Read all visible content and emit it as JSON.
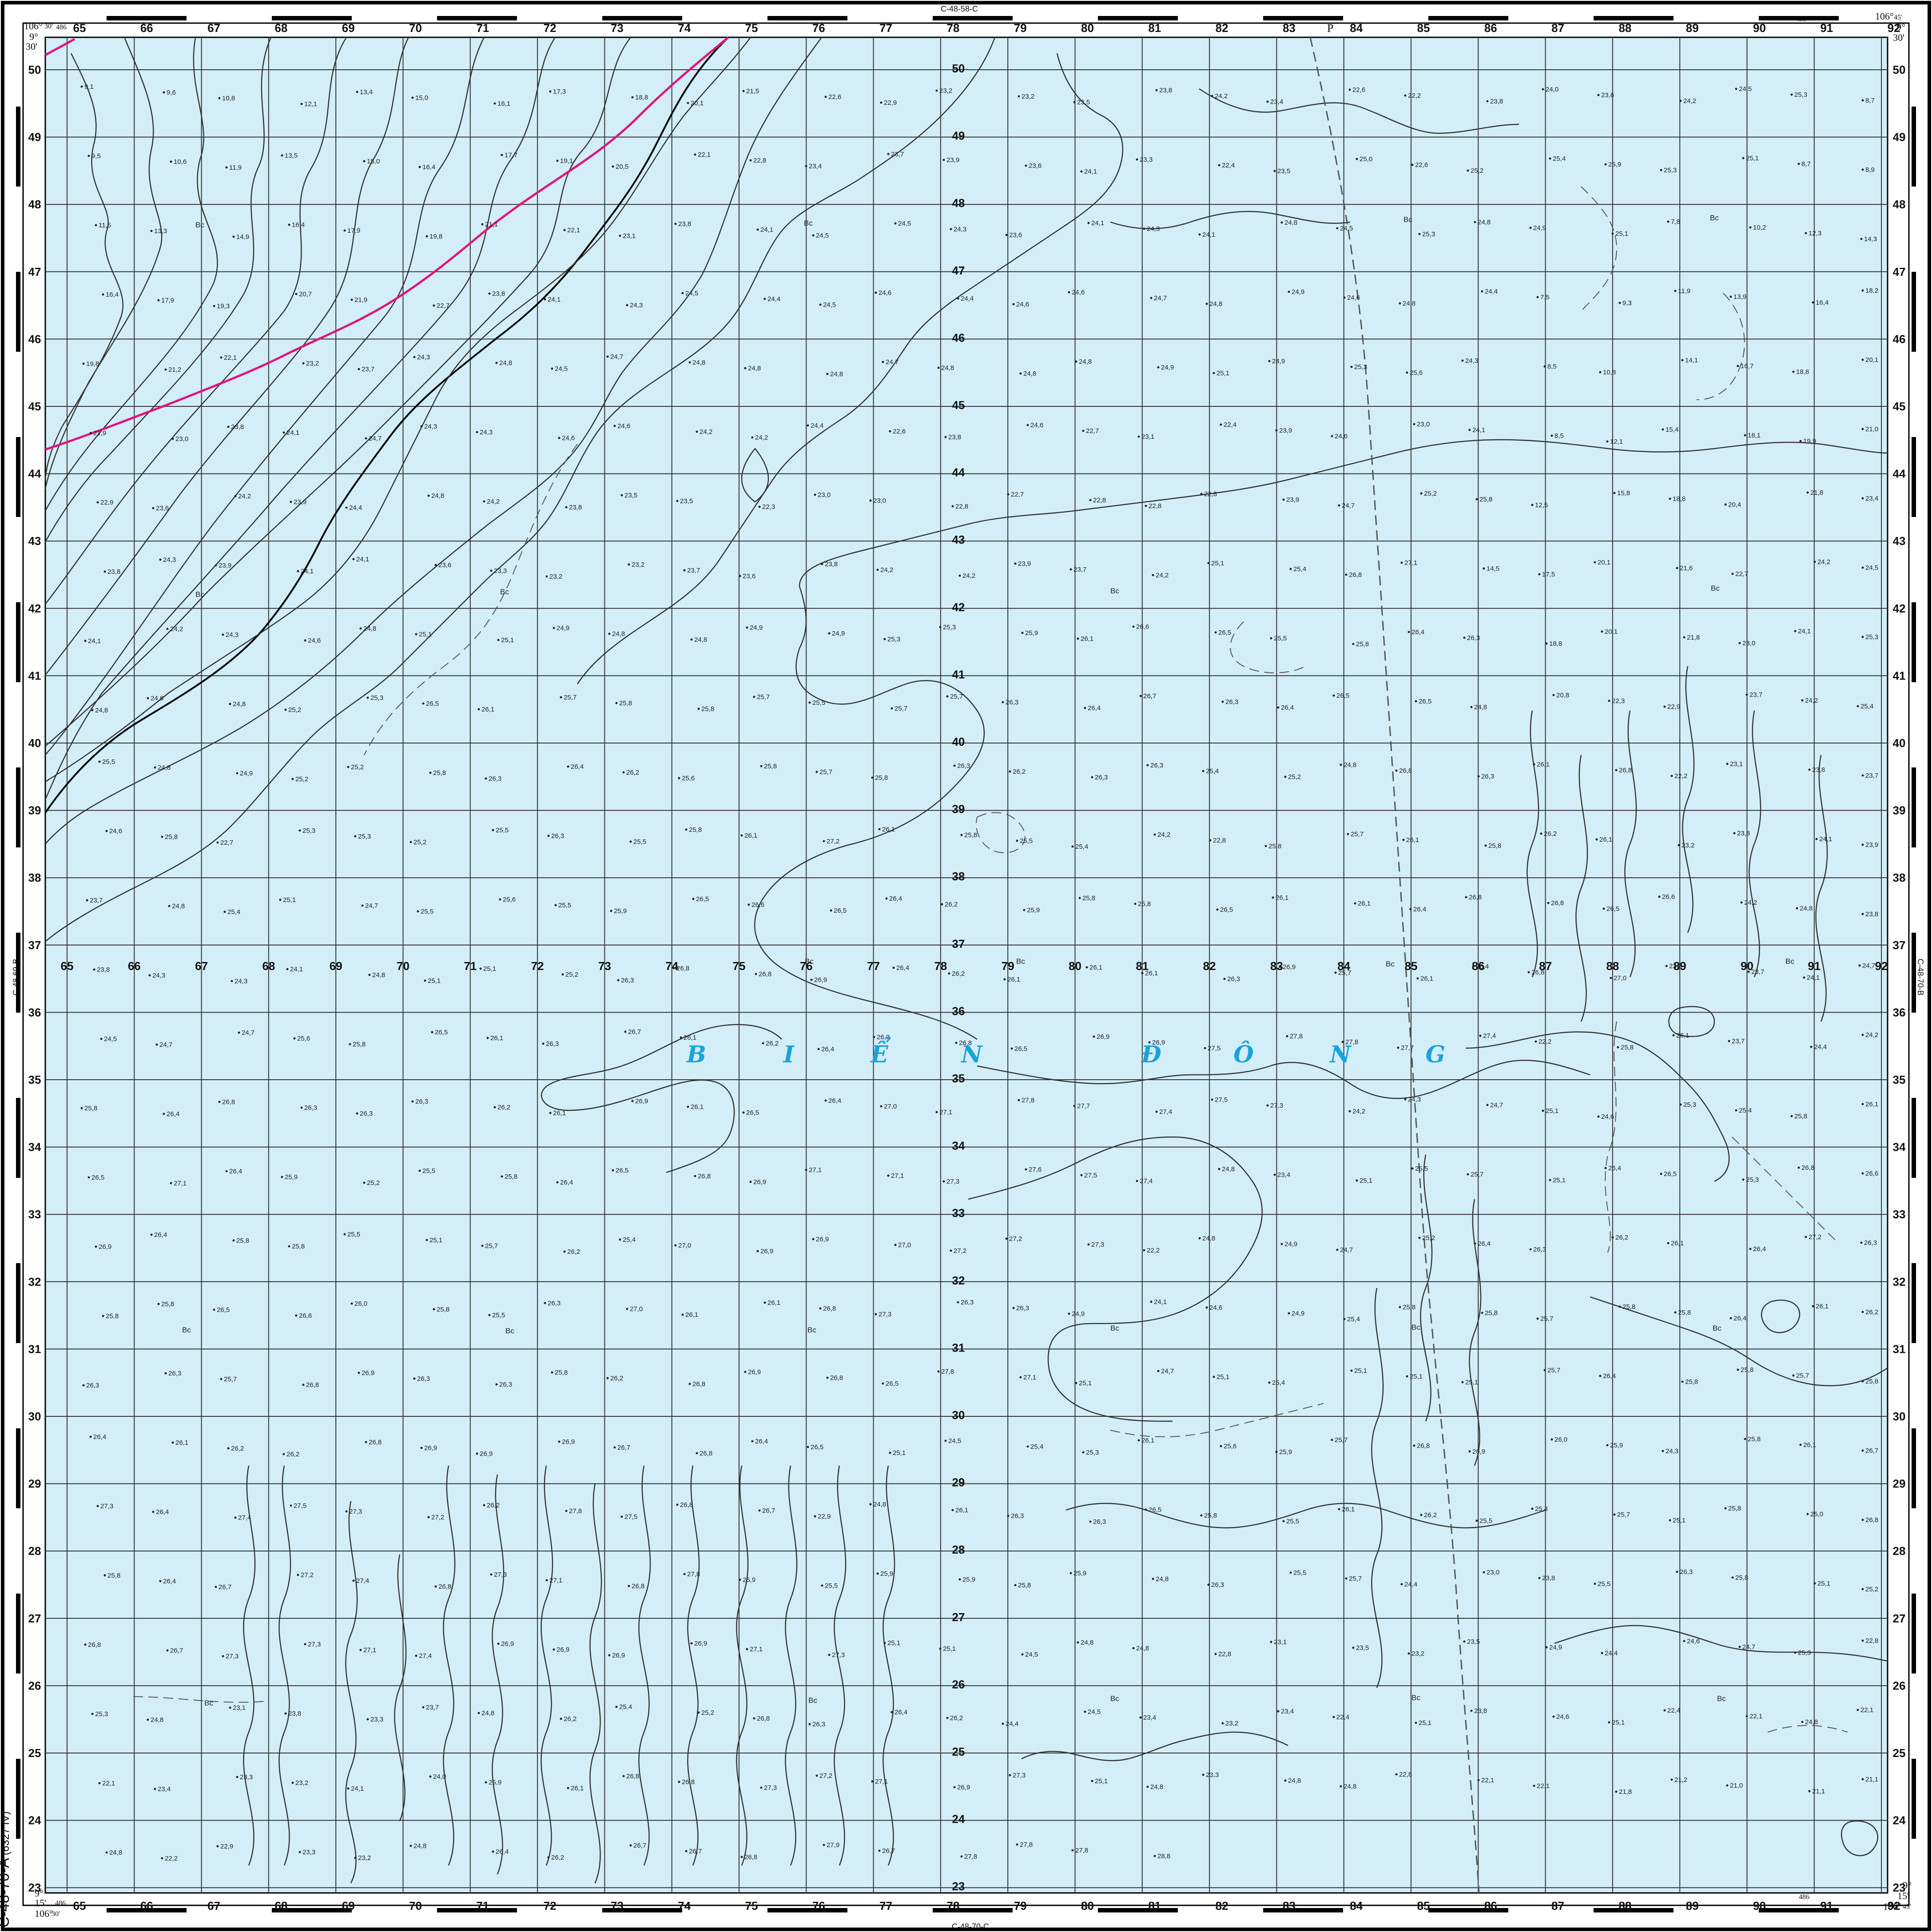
{
  "map": {
    "sheet_id": "C-48-70-A",
    "sheet_sub": "(6327 IV)",
    "sea_name_letters": [
      "B",
      "I",
      "Ể",
      "N",
      "Đ",
      "Ô",
      "N",
      "G"
    ],
    "adjacent_sheets": {
      "top": "C-48-58-C",
      "bottom": "C-48-70-C",
      "left": "C-48-69-B",
      "right": "C-48-70-B"
    },
    "corner_coords": {
      "top_left": {
        "lon_deg": "106°",
        "lon_min": "30'",
        "lat_deg": "9°",
        "lat_min": "30'",
        "easting": "486"
      },
      "top_right": {
        "lon_deg": "106°",
        "lon_min": "45'",
        "lat_deg": "9°",
        "lat_min": "30'",
        "easting": "486"
      },
      "bottom_left": {
        "lon_deg": "106°",
        "lon_min": "30'",
        "lat_deg": "9°",
        "lat_min": "15'",
        "easting": "486"
      },
      "bottom_right": {
        "lon_deg": "106°",
        "lon_min": "45'",
        "lat_deg": "9°",
        "lat_min": "15'",
        "easting": "486"
      }
    },
    "grid_x_labels": [
      "65",
      "66",
      "67",
      "68",
      "69",
      "70",
      "71",
      "72",
      "73",
      "74",
      "75",
      "76",
      "77",
      "78",
      "79",
      "80",
      "81",
      "82",
      "83",
      "84",
      "85",
      "86",
      "87",
      "88",
      "89",
      "90",
      "91",
      "92"
    ],
    "grid_y_labels": [
      "50",
      "49",
      "48",
      "47",
      "46",
      "45",
      "44",
      "43",
      "42",
      "41",
      "40",
      "39",
      "38",
      "37",
      "36",
      "35",
      "34",
      "33",
      "32",
      "31",
      "30",
      "29",
      "28",
      "27",
      "26",
      "25",
      "24",
      "23"
    ],
    "bottom_marks": [
      "Bc",
      "Bc",
      "Bc",
      "Bc",
      "Bc",
      "Bc",
      "Bc",
      "Bc",
      "Bc",
      "Bc",
      "Bc",
      "Bc",
      "Bc",
      "Bc",
      "Bc",
      "Bc",
      "Bc",
      "Bc",
      "Bc",
      "Bc",
      "Bc",
      "Bc",
      "Bc"
    ],
    "boundary_mark": "P",
    "depth_soundings": [
      "9,1",
      "9,6",
      "10,8",
      "12,1",
      "13,4",
      "15,0",
      "16,1",
      "17,3",
      "18,8",
      "20,1",
      "21,5",
      "22,6",
      "22,9",
      "23,2",
      "23,2",
      "23,5",
      "23,8",
      "24,2",
      "23,4",
      "22,6",
      "22,2",
      "23,8",
      "24,0",
      "23,6",
      "24,2",
      "24,5",
      "25,3",
      "8,7",
      "9,5",
      "10,6",
      "11,9",
      "13,5",
      "15,0",
      "16,4",
      "17,7",
      "19,1",
      "20,5",
      "22,1",
      "22,8",
      "23,4",
      "23,7",
      "23,9",
      "23,6",
      "24,1",
      "23,3",
      "22,4",
      "23,5",
      "25,0",
      "22,6",
      "25,2",
      "25,4",
      "25,9",
      "25,3",
      "25,1",
      "8,7",
      "8,9",
      "11,5",
      "13,3",
      "14,9",
      "16,4",
      "17,9",
      "19,8",
      "21,1",
      "22,1",
      "23,1",
      "23,8",
      "24,1",
      "24,5",
      "24,5",
      "24,3",
      "23,6",
      "24,1",
      "24,3",
      "24,1",
      "24,8",
      "24,5",
      "25,3",
      "24,8",
      "24,9",
      "25,1",
      "7,8",
      "10,2",
      "12,3",
      "14,3",
      "16,4",
      "17,9",
      "19,3",
      "20,7",
      "21,9",
      "22,7",
      "23,8",
      "24,1",
      "24,3",
      "24,5",
      "24,4",
      "24,5",
      "24,6",
      "24,4",
      "24,6",
      "24,6",
      "24,7",
      "24,8",
      "24,9",
      "24,6",
      "24,8",
      "24,4",
      "7,5",
      "9,3",
      "11,9",
      "13,9",
      "16,4",
      "18,2",
      "19,8",
      "21,2",
      "22,1",
      "23,2",
      "23,7",
      "24,3",
      "24,8",
      "24,5",
      "24,7",
      "24,8",
      "24,8",
      "24,8",
      "24,7",
      "24,8",
      "24,8",
      "24,8",
      "24,9",
      "25,1",
      "24,9",
      "25,3",
      "25,6",
      "24,3",
      "8,5",
      "10,8",
      "14,1",
      "16,7",
      "18,8",
      "20,1",
      "21,9",
      "23,0",
      "23,8",
      "24,1",
      "24,7",
      "24,3",
      "24,3",
      "24,6",
      "24,6",
      "24,2",
      "24,2",
      "24,4",
      "22,6",
      "23,8",
      "24,6",
      "22,7",
      "23,1",
      "22,4",
      "23,9",
      "24,6",
      "23,0",
      "24,1",
      "8,5",
      "12,1",
      "15,4",
      "18,1",
      "19,9",
      "21,0",
      "22,9",
      "23,6",
      "24,2",
      "23,9",
      "24,4",
      "24,8",
      "24,2",
      "23,8",
      "23,5",
      "23,5",
      "22,3",
      "23,0",
      "23,0",
      "22,8",
      "22,7",
      "22,8",
      "22,8",
      "22,8",
      "23,9",
      "24,7",
      "25,2",
      "25,8",
      "12,5",
      "15,8",
      "18,8",
      "20,4",
      "21,8",
      "23,4",
      "23,8",
      "24,3",
      "23,9",
      "24,1",
      "24,1",
      "23,6",
      "23,3",
      "23,2",
      "23,2",
      "23,7",
      "23,6",
      "23,8",
      "24,2",
      "24,2",
      "23,9",
      "23,7",
      "24,2",
      "25,1",
      "25,4",
      "26,8",
      "27,1",
      "14,5",
      "17,5",
      "20,1",
      "21,6",
      "22,7",
      "24,2",
      "24,5",
      "24,1",
      "24,2",
      "24,3",
      "24,6",
      "24,8",
      "25,1",
      "25,1",
      "24,9",
      "24,8",
      "24,8",
      "24,9",
      "24,9",
      "25,3",
      "25,3",
      "25,9",
      "26,1",
      "26,6",
      "26,5",
      "25,5",
      "25,8",
      "26,4",
      "26,3",
      "18,8",
      "20,1",
      "21,8",
      "23,0",
      "24,1",
      "25,3",
      "24,8",
      "24,6",
      "24,8",
      "25,2",
      "25,3",
      "26,5",
      "26,1",
      "25,7",
      "25,8",
      "25,8",
      "25,7",
      "25,5",
      "25,7",
      "25,7",
      "26,3",
      "26,4",
      "26,7",
      "26,3",
      "26,4",
      "26,5",
      "26,5",
      "24,8",
      "20,8",
      "22,3",
      "22,9",
      "23,7",
      "24,2",
      "25,4",
      "25,5",
      "24,8",
      "24,9",
      "25,2",
      "25,2",
      "25,8",
      "26,3",
      "26,4",
      "26,2",
      "25,6",
      "25,8",
      "25,7",
      "25,8",
      "26,3",
      "26,2",
      "26,3",
      "26,3",
      "25,4",
      "25,2",
      "24,8",
      "26,8",
      "26,3",
      "26,1",
      "26,8",
      "22,2",
      "23,1",
      "23,8",
      "23,7",
      "24,6",
      "25,8",
      "22,7",
      "25,3",
      "25,3",
      "25,2",
      "25,5",
      "26,3",
      "25,5",
      "25,8",
      "26,1",
      "27,2",
      "26,1",
      "25,8",
      "25,5",
      "25,4",
      "24,2",
      "22,8",
      "25,8",
      "25,7",
      "26,1",
      "25,8",
      "26,2",
      "26,1",
      "23,2",
      "23,8",
      "24,1",
      "23,9",
      "23,7",
      "24,8",
      "25,4",
      "25,1",
      "24,7",
      "25,5",
      "25,6",
      "25,5",
      "25,9",
      "26,5",
      "26,6",
      "26,5",
      "26,4",
      "26,2",
      "25,9",
      "25,8",
      "25,8",
      "26,5",
      "26,1",
      "26,1",
      "26,4",
      "26,8",
      "26,8",
      "26,5",
      "26,6",
      "24,2",
      "24,8",
      "23,8",
      "23,8",
      "24,3",
      "24,3",
      "24,1",
      "24,8",
      "25,1",
      "25,1",
      "25,2",
      "26,3",
      "26,8",
      "26,8",
      "26,9",
      "26,4",
      "26,2",
      "26,1",
      "26,1",
      "26,1",
      "26,3",
      "26,9",
      "25,7",
      "26,1",
      "26,4",
      "26,8",
      "27,0",
      "23,9",
      "23,7",
      "24,1",
      "24,7",
      "24,5",
      "24,7",
      "24,7",
      "25,6",
      "25,8",
      "26,5",
      "26,1",
      "26,3",
      "26,7",
      "26,1",
      "26,2",
      "26,4",
      "26,3",
      "26,8",
      "26,5",
      "26,9",
      "26,9",
      "27,5",
      "27,8",
      "27,8",
      "27,7",
      "27,4",
      "22,2",
      "25,8",
      "26,1",
      "23,7",
      "24,4",
      "24,2",
      "25,8",
      "26,4",
      "26,8",
      "26,3",
      "26,3",
      "26,3",
      "26,2",
      "26,1",
      "26,9",
      "26,1",
      "26,5",
      "26,4",
      "27,0",
      "27,1",
      "27,8",
      "27,7",
      "27,4",
      "27,5",
      "27,3",
      "24,2",
      "24,3",
      "24,7",
      "25,1",
      "24,6",
      "25,3",
      "25,4",
      "25,8",
      "26,1",
      "26,5",
      "27,1",
      "26,4",
      "25,9",
      "25,2",
      "25,5",
      "25,8",
      "26,4",
      "26,5",
      "26,8",
      "26,9",
      "27,1",
      "27,1",
      "27,3",
      "27,6",
      "27,5",
      "27,4",
      "24,8",
      "23,4",
      "25,1",
      "25,5",
      "25,7",
      "25,1",
      "26,4",
      "26,5",
      "25,3",
      "26,8",
      "26,6",
      "26,9",
      "26,4",
      "25,8",
      "25,8",
      "25,5",
      "25,1",
      "25,7",
      "26,2",
      "25,4",
      "27,0",
      "26,9",
      "26,9",
      "27,0",
      "27,2",
      "27,2",
      "27,3",
      "22,2",
      "24,8",
      "24,9",
      "24,7",
      "25,2",
      "26,4",
      "26,3",
      "26,2",
      "26,1",
      "26,4",
      "27,2",
      "26,3",
      "25,8",
      "25,8",
      "26,5",
      "26,6",
      "26,0",
      "25,8",
      "25,5",
      "26,3",
      "27,0",
      "26,1",
      "26,1",
      "26,8",
      "27,3",
      "26,3",
      "26,3",
      "24,9",
      "24,1",
      "24,6",
      "24,9",
      "25,4",
      "25,8",
      "25,8",
      "25,7",
      "25,8",
      "25,8",
      "26,4",
      "26,1",
      "26,2",
      "26,3",
      "26,3",
      "25,7",
      "26,8",
      "26,9",
      "26,3",
      "26,3",
      "25,8",
      "26,2",
      "26,8",
      "26,9",
      "26,8",
      "26,5",
      "27,8",
      "27,1",
      "25,1",
      "24,7",
      "25,1",
      "25,4",
      "25,1",
      "25,1",
      "25,1",
      "25,7",
      "26,4",
      "25,8",
      "25,8",
      "25,7",
      "25,8",
      "26,4",
      "26,1",
      "26,2",
      "26,2",
      "26,8",
      "26,9",
      "26,9",
      "26,9",
      "26,7",
      "26,8",
      "26,4",
      "26,5",
      "25,1",
      "24,5",
      "25,4",
      "25,3",
      "26,1",
      "25,6",
      "25,9",
      "25,7",
      "26,8",
      "26,9",
      "26,0",
      "25,9",
      "24,3",
      "25,8",
      "26,1",
      "26,7",
      "27,3",
      "26,4",
      "27,4",
      "27,5",
      "27,3",
      "27,2",
      "26,2",
      "27,8",
      "27,5",
      "26,8",
      "26,7",
      "22,9",
      "24,8",
      "26,1",
      "26,3",
      "26,3",
      "26,5",
      "25,8",
      "25,5",
      "26,1",
      "26,2",
      "25,5",
      "25,4",
      "25,7",
      "25,1",
      "25,8",
      "25,0",
      "26,8",
      "25,8",
      "26,4",
      "26,7",
      "27,2",
      "27,4",
      "26,8",
      "27,3",
      "27,1",
      "26,8",
      "27,8",
      "25,9",
      "25,5",
      "25,9",
      "25,9",
      "25,8",
      "25,9",
      "24,8",
      "26,3",
      "25,5",
      "25,7",
      "24,4",
      "23,0",
      "23,8",
      "25,5",
      "26,3",
      "25,8",
      "25,1",
      "25,2",
      "26,8",
      "26,7",
      "27,3",
      "27,3",
      "27,1",
      "27,4",
      "26,9",
      "26,9",
      "26,9",
      "26,9",
      "27,1",
      "27,3",
      "25,1",
      "25,1",
      "24,5",
      "24,8",
      "24,8",
      "22,8",
      "23,1",
      "23,5",
      "23,2",
      "23,5",
      "24,9",
      "24,4",
      "24,6",
      "24,7",
      "25,3",
      "22,8",
      "25,3",
      "24,8",
      "23,1",
      "23,8",
      "23,3",
      "23,7",
      "24,8",
      "26,2",
      "25,4",
      "25,2",
      "26,8",
      "26,3",
      "26,4",
      "26,2",
      "24,4",
      "24,5",
      "23,4",
      "23,2",
      "23,4",
      "22,4",
      "25,1",
      "23,8",
      "24,6",
      "25,1",
      "22,4",
      "22,1",
      "24,8",
      "22,1",
      "22,1",
      "23,4",
      "23,3",
      "23,2",
      "24,1",
      "24,0",
      "25,9",
      "26,1",
      "26,8",
      "26,8",
      "27,3",
      "27,2",
      "27,1",
      "26,9",
      "27,3",
      "25,1",
      "24,8",
      "23,3",
      "24,8",
      "24,8",
      "22,8",
      "22,1",
      "22,1",
      "21,8",
      "21,2",
      "21,0",
      "21,1",
      "21,1",
      "24,8",
      "22,2",
      "22,9",
      "23,3",
      "23,2",
      "24,8",
      "26,4",
      "26,2",
      "26,7",
      "26,7",
      "26,8",
      "27,9",
      "26,7",
      "27,8",
      "27,8",
      "27,8",
      "28,8"
    ]
  }
}
